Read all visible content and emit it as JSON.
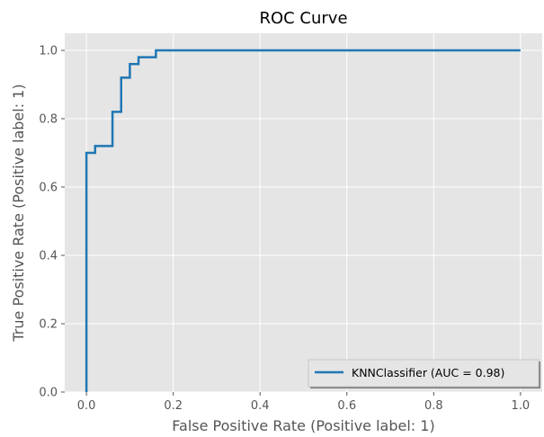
{
  "chart_data": {
    "type": "line",
    "title": "ROC Curve",
    "xlabel": "False Positive Rate (Positive label: 1)",
    "ylabel": "True Positive Rate (Positive label: 1)",
    "xlim": [
      -0.05,
      1.05
    ],
    "ylim": [
      0.0,
      1.05
    ],
    "xticks": [
      0.0,
      0.2,
      0.4,
      0.6,
      0.8,
      1.0
    ],
    "xtick_labels": [
      "0.0",
      "0.2",
      "0.4",
      "0.6",
      "0.8",
      "1.0"
    ],
    "yticks": [
      0.0,
      0.2,
      0.4,
      0.6,
      0.8,
      1.0
    ],
    "ytick_labels": [
      "0.0",
      "0.2",
      "0.4",
      "0.6",
      "0.8",
      "1.0"
    ],
    "grid": true,
    "legend_position": "lower-right",
    "series": [
      {
        "name": "KNNClassifier (AUC = 0.98)",
        "color": "#1f77b4",
        "x": [
          0.0,
          0.0,
          0.0,
          0.02,
          0.02,
          0.06,
          0.06,
          0.08,
          0.08,
          0.1,
          0.1,
          0.12,
          0.12,
          0.16,
          0.16,
          1.0
        ],
        "y": [
          0.0,
          0.7,
          0.7,
          0.7,
          0.72,
          0.72,
          0.82,
          0.82,
          0.92,
          0.92,
          0.96,
          0.96,
          0.98,
          0.98,
          1.0,
          1.0
        ]
      }
    ]
  },
  "colors": {
    "plot_background": "#e5e5e5",
    "grid": "#ffffff",
    "line": "#1f77b4"
  }
}
